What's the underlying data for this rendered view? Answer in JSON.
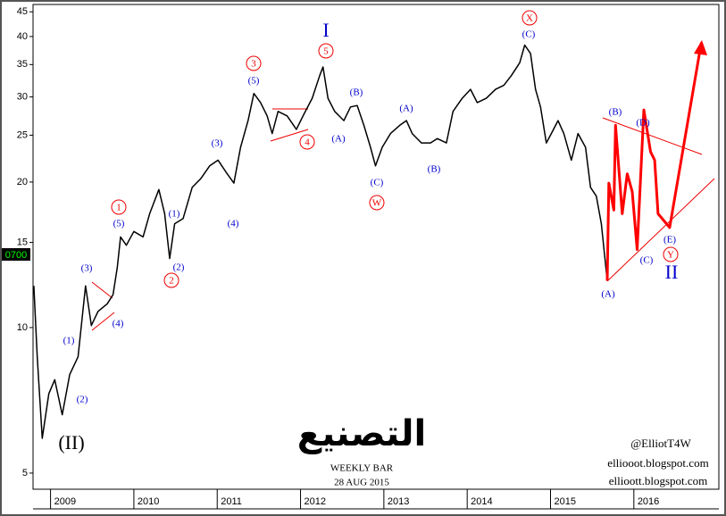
{
  "chart_data": {
    "type": "line",
    "title": "التصنيع",
    "subtitle": "WEEKLY BAR",
    "date_label": "28 AUG 2015",
    "credits": [
      "@ElliotT4W",
      "elliooot.blogspot.com",
      "ellioott.blogspot.com"
    ],
    "price_label": "0700",
    "log_y": true,
    "xlim": [
      2008.79,
      2017.02
    ],
    "xticks": [
      2009,
      2010,
      2011,
      2012,
      2013,
      2014,
      2015,
      2016
    ],
    "ylim": [
      4.63,
      46.6
    ],
    "yticks": [
      5,
      10,
      15,
      20,
      25,
      30,
      35,
      40,
      45
    ],
    "series": [
      {
        "color": "#000000",
        "x": [
          2008.8,
          2008.84,
          2008.9,
          2008.98,
          2009.05,
          2009.14,
          2009.23,
          2009.33,
          2009.42,
          2009.49,
          2009.57,
          2009.68,
          2009.75,
          2009.8,
          2009.84,
          2009.91,
          2010.0,
          2010.11,
          2010.19,
          2010.3,
          2010.37,
          2010.43,
          2010.49,
          2010.59,
          2010.7,
          2010.8,
          2010.91,
          2011.01,
          2011.12,
          2011.2,
          2011.28,
          2011.37,
          2011.44,
          2011.52,
          2011.6,
          2011.66,
          2011.73,
          2011.84,
          2011.95,
          2012.03,
          2012.14,
          2012.23,
          2012.27,
          2012.33,
          2012.41,
          2012.52,
          2012.6,
          2012.68,
          2012.76,
          2012.84,
          2012.9,
          2012.98,
          2013.08,
          2013.19,
          2013.27,
          2013.34,
          2013.45,
          2013.56,
          2013.64,
          2013.75,
          2013.83,
          2013.94,
          2014.04,
          2014.12,
          2014.23,
          2014.34,
          2014.44,
          2014.53,
          2014.63,
          2014.69,
          2014.76,
          2014.82,
          2014.88,
          2014.95,
          2015.01,
          2015.09,
          2015.16,
          2015.25,
          2015.33,
          2015.42,
          2015.48,
          2015.55,
          2015.61,
          2015.68
        ],
        "values": [
          12.2,
          8.7,
          5.9,
          7.3,
          7.8,
          6.6,
          8.0,
          8.7,
          12.2,
          10.1,
          10.8,
          11.2,
          11.7,
          13.3,
          15.4,
          14.8,
          15.8,
          15.4,
          17.2,
          19.3,
          17.2,
          13.9,
          16.4,
          16.8,
          19.5,
          20.3,
          21.6,
          22.2,
          20.8,
          19.9,
          23.6,
          26.8,
          30.5,
          29.2,
          27.4,
          25.2,
          28.0,
          27.4,
          25.7,
          27.4,
          29.8,
          33.2,
          34.6,
          29.8,
          28.0,
          26.8,
          28.6,
          28.8,
          26.2,
          23.6,
          21.6,
          23.6,
          25.2,
          26.2,
          26.8,
          25.2,
          24.1,
          24.1,
          24.6,
          24.1,
          28.0,
          29.8,
          31.1,
          29.2,
          29.8,
          31.1,
          31.7,
          33.2,
          35.3,
          38.4,
          36.9,
          31.1,
          28.6,
          24.1,
          25.2,
          26.8,
          25.2,
          22.2,
          25.2,
          23.6,
          19.5,
          18.7,
          16.4,
          12.5
        ]
      },
      {
        "color": "#ff0000",
        "x": [
          2015.68,
          2015.7,
          2015.76,
          2015.78,
          2015.86,
          2015.92,
          2015.98,
          2016.04,
          2016.12,
          2016.2,
          2016.25,
          2016.29,
          2016.43,
          2016.81
        ],
        "values": [
          12.5,
          19.9,
          17.5,
          26.2,
          17.2,
          20.8,
          19.1,
          14.5,
          28.2,
          23.1,
          22.2,
          17.2,
          16.1,
          38.9
        ]
      }
    ],
    "wave_labels": [
      "(II)",
      "(1)",
      "(2)",
      "(3)",
      "(4)",
      "(5)",
      "1",
      "2",
      "(1)",
      "(2)",
      "(3)",
      "(4)",
      "(5)",
      "3",
      "4",
      "5",
      "I",
      "(A)",
      "(B)",
      "(C)",
      "W",
      "(A)",
      "(B)",
      "(C)",
      "X",
      "(A)",
      "(B)",
      "(C)",
      "(D)",
      "(E)",
      "Y",
      "II"
    ]
  }
}
